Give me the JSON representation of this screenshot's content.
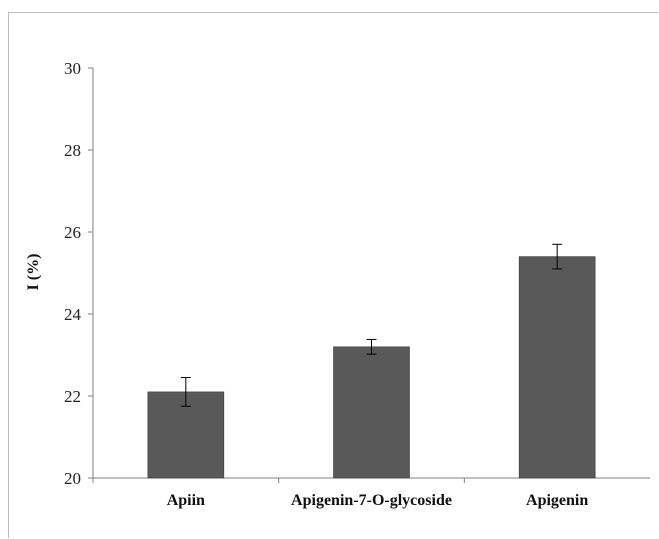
{
  "chart_data": {
    "type": "bar",
    "title": "",
    "xlabel": "",
    "ylabel": "I (%)",
    "categories": [
      "Apiin",
      "Apigenin-7-O-glycoside",
      "Apigenin"
    ],
    "values": [
      22.1,
      23.2,
      25.4
    ],
    "errors": [
      0.35,
      0.18,
      0.3
    ],
    "ylim": [
      20,
      30
    ],
    "yticks": [
      20,
      22,
      24,
      26,
      28,
      30
    ],
    "ytick_labels": [
      "20",
      "22",
      "24",
      "26",
      "28",
      "30"
    ],
    "bar_color": "#595959",
    "grid": false,
    "legend": "none"
  }
}
